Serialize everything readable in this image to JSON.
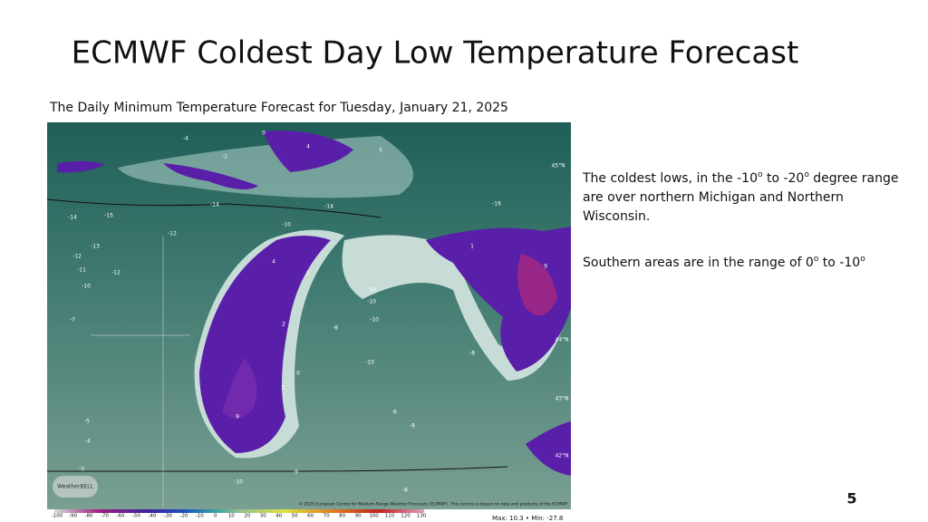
{
  "slide": {
    "title": "ECMWF Coldest Day Low Temperature Forecast",
    "subtitle": "The Daily Minimum Temperature Forecast for Tuesday, January 21, 2025",
    "paragraphs": [
      [
        "The coldest lows, in the -10",
        "o",
        "  to  -20",
        "o",
        " degree range are over northern Michigan and Northern Wisconsin."
      ],
      [
        "Southern areas are in the range of 0",
        "o",
        "  to -10",
        "o"
      ]
    ],
    "page_number": "5",
    "map": {
      "labels": [
        "-4",
        "0",
        "4",
        "-1",
        "5",
        "-14",
        "-14",
        "-16",
        "-15",
        "-14",
        "-12",
        "-10",
        "-13",
        "-12",
        "-11",
        "-12",
        "-10",
        "4",
        "1",
        "1",
        "9",
        "-10",
        "-10",
        "-10",
        "2",
        "-8",
        "-8",
        "-10",
        "-7",
        "9",
        "-8",
        "-6",
        "-5",
        "-4",
        "-3",
        "-10",
        "-9",
        "-8",
        "0",
        "3",
        "45°N",
        "44°N",
        "43°N",
        "42°N"
      ],
      "logo": "WeatherBELL",
      "credit": "© 2025 European Centre for Medium-Range Weather Forecasts (ECMWF). This service is based on data and products of the ECMWF.",
      "colorbar_ticks": [
        -100,
        -90,
        -80,
        -70,
        -60,
        -50,
        -40,
        -30,
        -20,
        -10,
        0,
        10,
        20,
        30,
        40,
        50,
        60,
        70,
        80,
        90,
        100,
        110,
        120,
        130
      ],
      "stats": "Max: 10.3 • Min: -27.8"
    }
  }
}
